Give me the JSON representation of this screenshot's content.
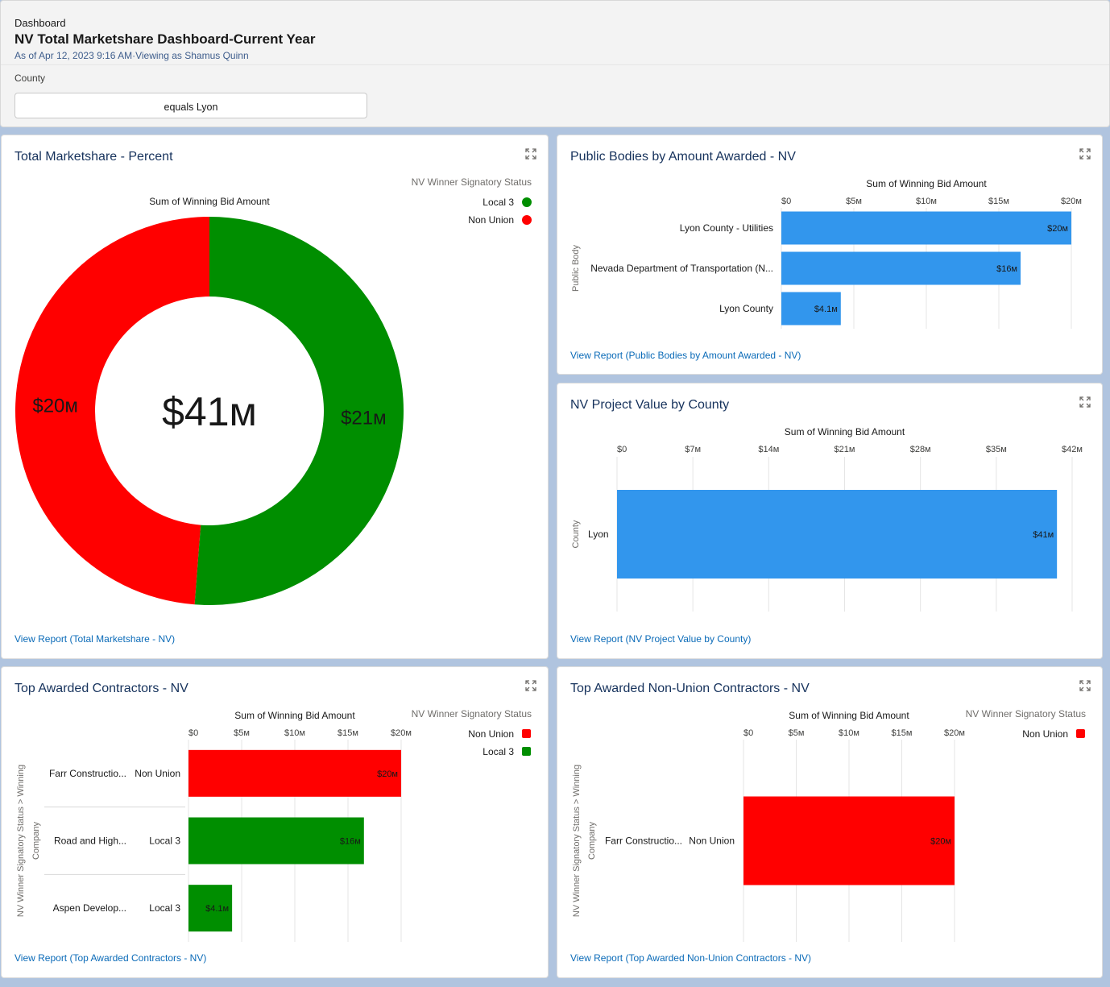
{
  "header": {
    "kicker": "Dashboard",
    "title": "NV Total Marketshare Dashboard-Current Year",
    "subtitle": "As of Apr 12, 2023 9:16 AM·Viewing as Shamus Quinn",
    "filter_label": "County",
    "filter_value": "equals Lyon"
  },
  "colors": {
    "green": "#008e00",
    "red": "#ff0000",
    "blue": "#3296ed",
    "link": "#0b6bb8",
    "title": "#16325c"
  },
  "cards": {
    "marketshare": {
      "title": "Total Marketshare - Percent",
      "link": "View Report (Total Marketshare - NV)",
      "expand_icon": "expand-icon",
      "chart_data": {
        "type": "pie",
        "title": "Sum of Winning Bid Amount",
        "legend_title": "NV Winner Signatory Status",
        "legend_position": "top-right",
        "center_label": "$41м",
        "slices": [
          {
            "name": "Local 3",
            "value": 21,
            "label": "$21м",
            "color": "#008e00"
          },
          {
            "name": "Non Union",
            "value": 20,
            "label": "$20м",
            "color": "#ff0000"
          }
        ]
      }
    },
    "public_bodies": {
      "title": "Public Bodies by Amount Awarded - NV",
      "link": "View Report (Public Bodies by Amount Awarded - NV)",
      "expand_icon": "expand-icon",
      "chart_data": {
        "type": "bar",
        "orientation": "horizontal",
        "title": "Sum of Winning Bid Amount",
        "ylabel": "Public Body",
        "xlim": [
          0,
          20
        ],
        "ticks": [
          {
            "v": 0,
            "label": "$0"
          },
          {
            "v": 5,
            "label": "$5м"
          },
          {
            "v": 10,
            "label": "$10м"
          },
          {
            "v": 15,
            "label": "$15м"
          },
          {
            "v": 20,
            "label": "$20м"
          }
        ],
        "categories": [
          "Lyon County - Utilities",
          "Nevada Department of Transportation (N...",
          "Lyon County"
        ],
        "values": [
          20,
          16.5,
          4.1
        ],
        "value_labels": [
          "$20м",
          "$16м",
          "$4.1м"
        ],
        "color": "#3296ed"
      }
    },
    "project_value": {
      "title": "NV Project Value by County",
      "link": "View Report (NV Project Value by County)",
      "expand_icon": "expand-icon",
      "chart_data": {
        "type": "bar",
        "orientation": "horizontal",
        "title": "Sum of Winning Bid Amount",
        "ylabel": "County",
        "xlim": [
          0,
          42
        ],
        "ticks": [
          {
            "v": 0,
            "label": "$0"
          },
          {
            "v": 7,
            "label": "$7м"
          },
          {
            "v": 14,
            "label": "$14м"
          },
          {
            "v": 21,
            "label": "$21м"
          },
          {
            "v": 28,
            "label": "$28м"
          },
          {
            "v": 35,
            "label": "$35м"
          },
          {
            "v": 42,
            "label": "$42м"
          }
        ],
        "categories": [
          "Lyon"
        ],
        "values": [
          40.6
        ],
        "value_labels": [
          "$41м"
        ],
        "color": "#3296ed"
      }
    },
    "top_contractors": {
      "title": "Top Awarded Contractors - NV",
      "link": "View Report (Top Awarded Contractors - NV)",
      "expand_icon": "expand-icon",
      "chart_data": {
        "type": "bar",
        "orientation": "horizontal",
        "title": "Sum of Winning Bid Amount",
        "ylabel": "NV Winner Signatory Status > Winning Company",
        "legend_title": "NV Winner Signatory Status",
        "legend": [
          {
            "name": "Non Union",
            "color": "#ff0000"
          },
          {
            "name": "Local 3",
            "color": "#008e00"
          }
        ],
        "xlim": [
          0,
          20
        ],
        "ticks": [
          {
            "v": 0,
            "label": "$0"
          },
          {
            "v": 5,
            "label": "$5м"
          },
          {
            "v": 10,
            "label": "$10м"
          },
          {
            "v": 15,
            "label": "$15м"
          },
          {
            "v": 20,
            "label": "$20м"
          }
        ],
        "rows": [
          {
            "company": "Farr Constructio...",
            "status": "Non Union",
            "value": 20,
            "label": "$20м",
            "color": "#ff0000"
          },
          {
            "company": "Road and High...",
            "status": "Local 3",
            "value": 16.5,
            "label": "$16м",
            "color": "#008e00"
          },
          {
            "company": "Aspen Develop...",
            "status": "Local 3",
            "value": 4.1,
            "label": "$4.1м",
            "color": "#008e00"
          }
        ]
      }
    },
    "non_union": {
      "title": "Top Awarded Non-Union Contractors - NV",
      "link": "View Report (Top Awarded Non-Union Contractors - NV)",
      "expand_icon": "expand-icon",
      "chart_data": {
        "type": "bar",
        "orientation": "horizontal",
        "title": "Sum of Winning Bid Amount",
        "ylabel": "NV Winner Signatory Status > Winning Company",
        "legend_title": "NV Winner Signatory Status",
        "legend": [
          {
            "name": "Non Union",
            "color": "#ff0000"
          }
        ],
        "xlim": [
          0,
          20
        ],
        "ticks": [
          {
            "v": 0,
            "label": "$0"
          },
          {
            "v": 5,
            "label": "$5м"
          },
          {
            "v": 10,
            "label": "$10м"
          },
          {
            "v": 15,
            "label": "$15м"
          },
          {
            "v": 20,
            "label": "$20м"
          }
        ],
        "rows": [
          {
            "company": "Farr Constructio...",
            "status": "Non Union",
            "value": 20,
            "label": "$20м",
            "color": "#ff0000"
          }
        ]
      }
    }
  }
}
